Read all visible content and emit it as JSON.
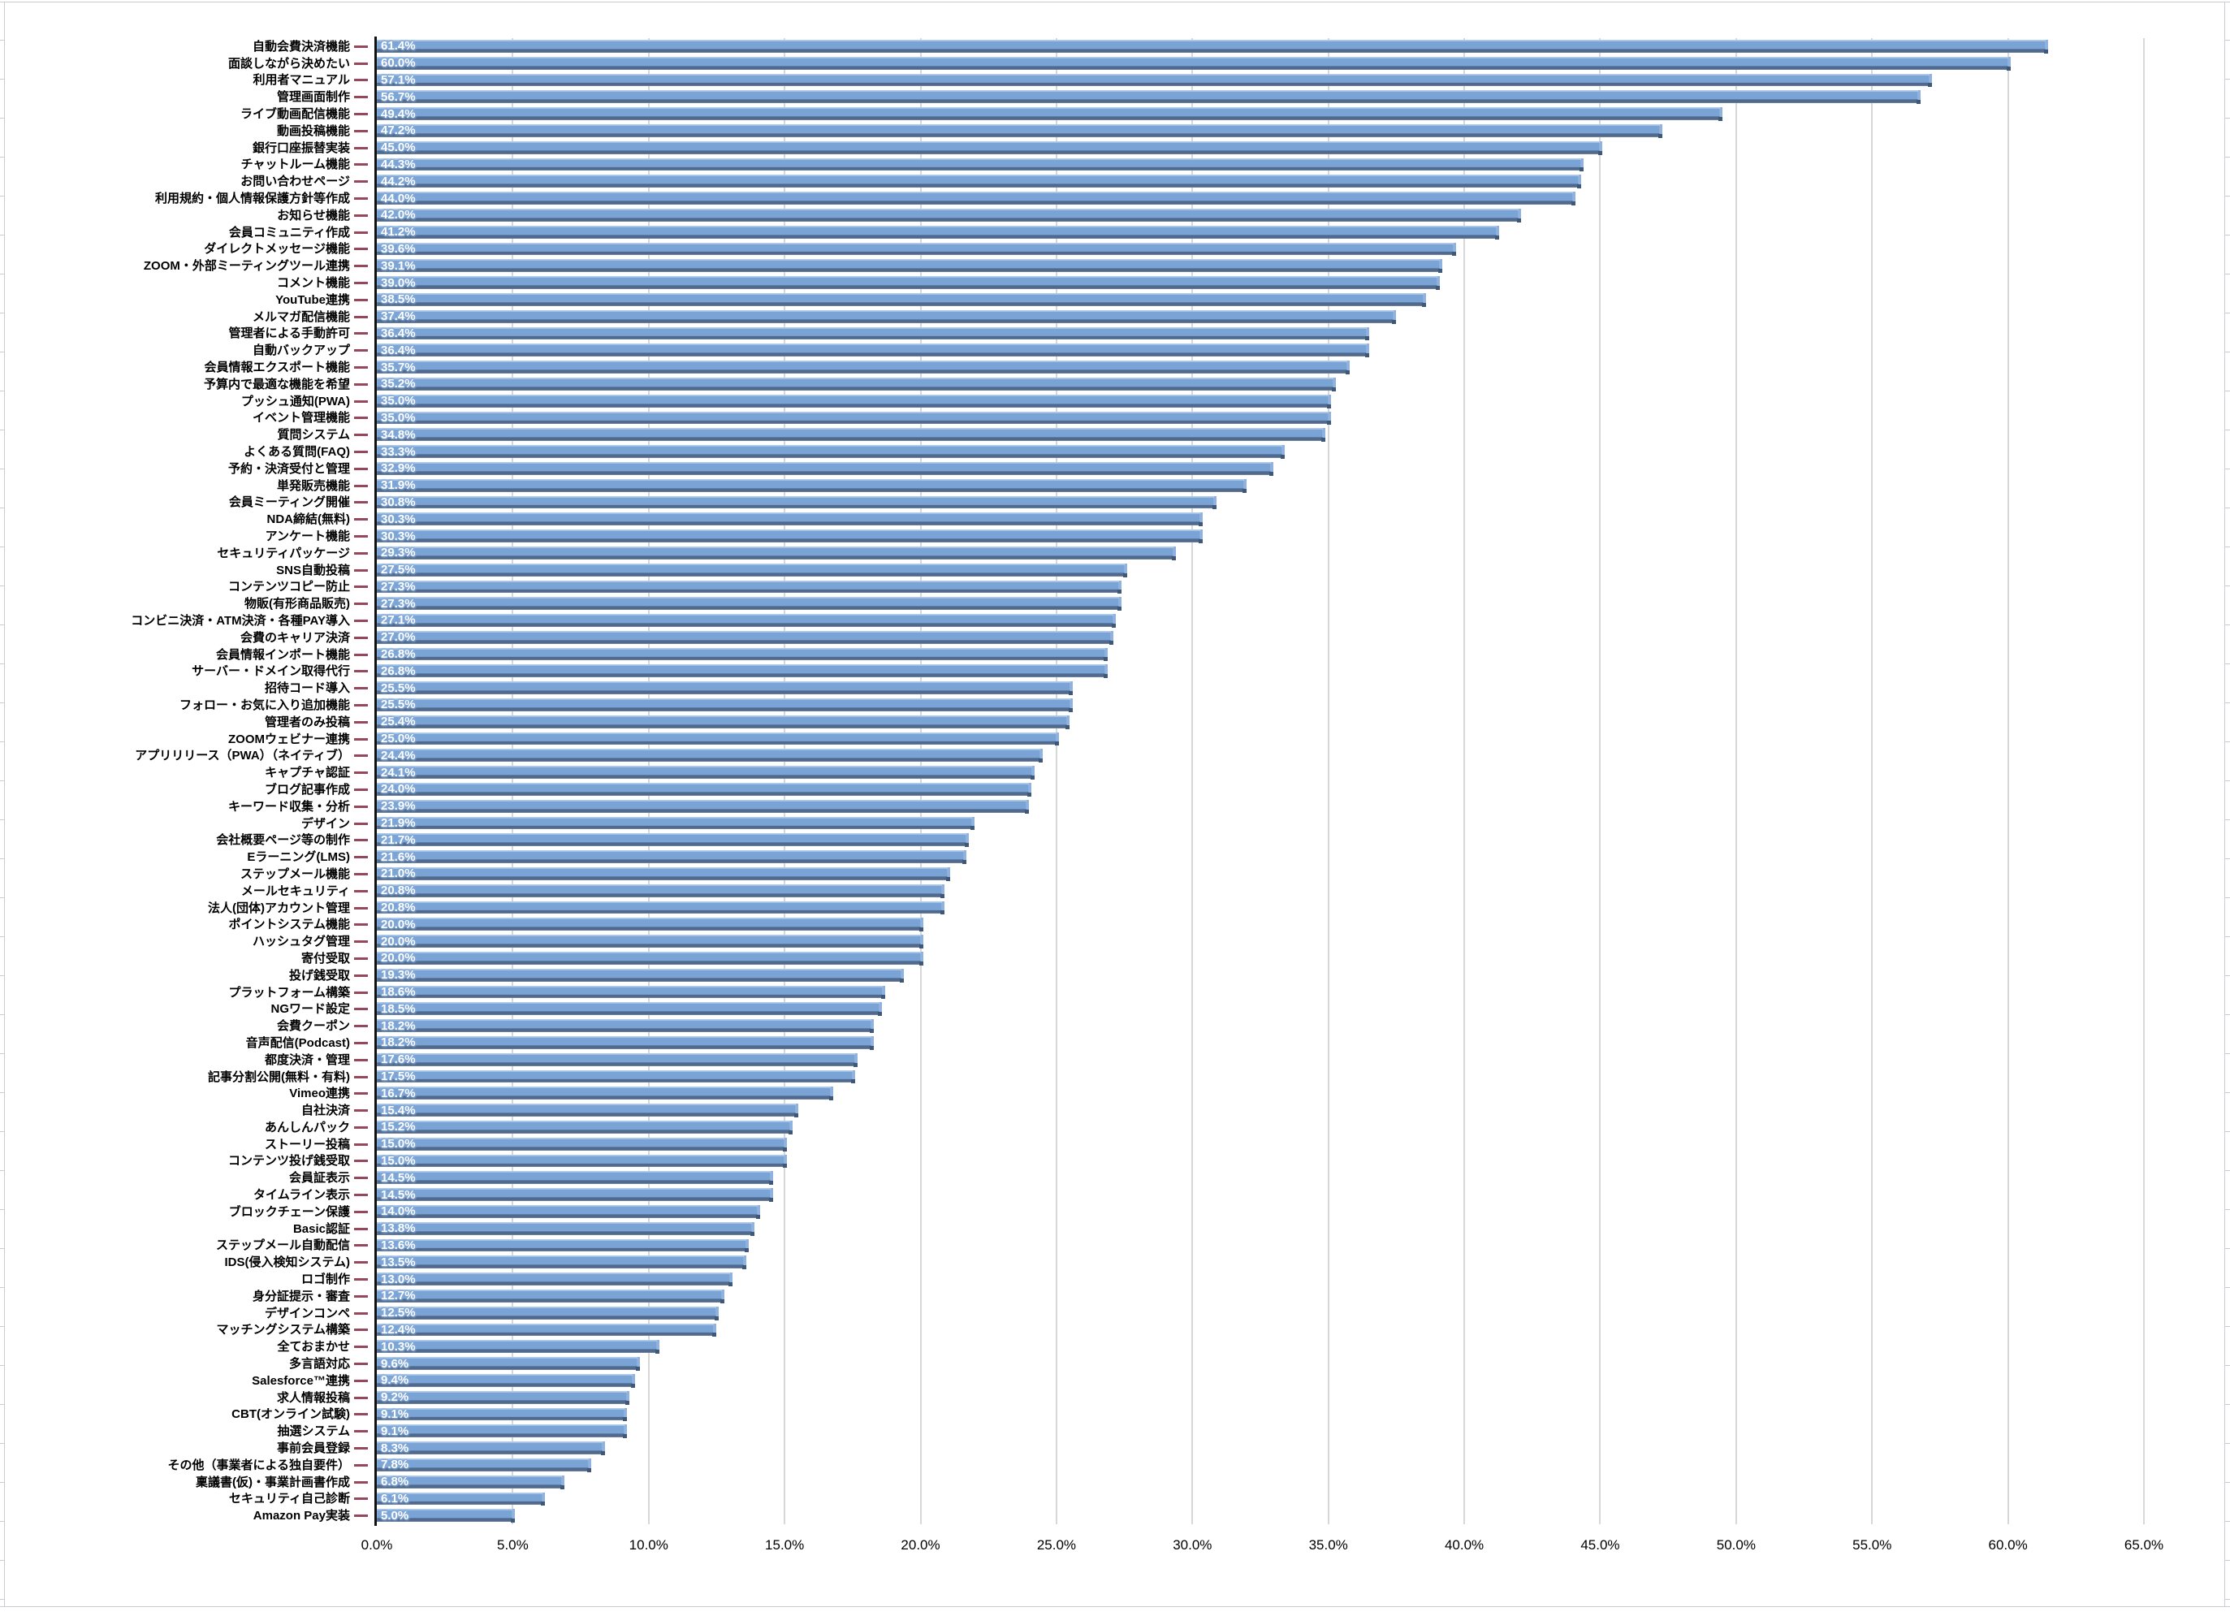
{
  "chart_data": {
    "type": "bar",
    "orientation": "horizontal",
    "title": "",
    "xlabel": "",
    "ylabel": "",
    "xlim": [
      0,
      65
    ],
    "tick_step": 5,
    "x_tick_labels": [
      "0.0%",
      "5.0%",
      "10.0%",
      "15.0%",
      "20.0%",
      "25.0%",
      "30.0%",
      "35.0%",
      "40.0%",
      "45.0%",
      "50.0%",
      "55.0%",
      "60.0%",
      "65.0%"
    ],
    "grid": true,
    "legend": false,
    "value_label_suffix": "%",
    "categories": [
      "自動会費決済機能",
      "面談しながら決めたい",
      "利用者マニュアル",
      "管理画面制作",
      "ライブ動画配信機能",
      "動画投稿機能",
      "銀行口座振替実装",
      "チャットルーム機能",
      "お問い合わせページ",
      "利用規約・個人情報保護方針等作成",
      "お知らせ機能",
      "会員コミュニティ作成",
      "ダイレクトメッセージ機能",
      "ZOOM・外部ミーティングツール連携",
      "コメント機能",
      "YouTube連携",
      "メルマガ配信機能",
      "管理者による手動許可",
      "自動バックアップ",
      "会員情報エクスポート機能",
      "予算内で最適な機能を希望",
      "プッシュ通知(PWA)",
      "イベント管理機能",
      "質問システム",
      "よくある質問(FAQ)",
      "予約・決済受付と管理",
      "単発販売機能",
      "会員ミーティング開催",
      "NDA締結(無料)",
      "アンケート機能",
      "セキュリティパッケージ",
      "SNS自動投稿",
      "コンテンツコピー防止",
      "物販(有形商品販売)",
      "コンビニ決済・ATM決済・各種PAY導入",
      "会費のキャリア決済",
      "会員情報インポート機能",
      "サーバー・ドメイン取得代行",
      "招待コード導入",
      "フォロー・お気に入り追加機能",
      "管理者のみ投稿",
      "ZOOMウェビナー連携",
      "アプリリリース（PWA）（ネイティブ）",
      "キャプチャ認証",
      "ブログ記事作成",
      "キーワード収集・分析",
      "デザイン",
      "会社概要ページ等の制作",
      "Eラーニング(LMS)",
      "ステップメール機能",
      "メールセキュリティ",
      "法人(団体)アカウント管理",
      "ポイントシステム機能",
      "ハッシュタグ管理",
      "寄付受取",
      "投げ銭受取",
      "プラットフォーム構築",
      "NGワード設定",
      "会費クーポン",
      "音声配信(Podcast)",
      "都度決済・管理",
      "記事分割公開(無料・有料)",
      "Vimeo連携",
      "自社決済",
      "あんしんパック",
      "ストーリー投稿",
      "コンテンツ投げ銭受取",
      "会員証表示",
      "タイムライン表示",
      "ブロックチェーン保護",
      "Basic認証",
      "ステップメール自動配信",
      "IDS(侵入検知システム)",
      "ロゴ制作",
      "身分証提示・審査",
      "デザインコンペ",
      "マッチングシステム構築",
      "全ておまかせ",
      "多言語対応",
      "Salesforce™連携",
      "求人情報投稿",
      "CBT(オンライン試験)",
      "抽選システム",
      "事前会員登録",
      "その他（事業者による独自要件）",
      "稟議書(仮)・事業計画書作成",
      "セキュリティ自己診断",
      "Amazon Pay実装"
    ],
    "values": [
      61.4,
      60.0,
      57.1,
      56.7,
      49.4,
      47.2,
      45.0,
      44.3,
      44.2,
      44.0,
      42.0,
      41.2,
      39.6,
      39.1,
      39.0,
      38.5,
      37.4,
      36.4,
      36.4,
      35.7,
      35.2,
      35.0,
      35.0,
      34.8,
      33.3,
      32.9,
      31.9,
      30.8,
      30.3,
      30.3,
      29.3,
      27.5,
      27.3,
      27.3,
      27.1,
      27.0,
      26.8,
      26.8,
      25.5,
      25.5,
      25.4,
      25.0,
      24.4,
      24.1,
      24.0,
      23.9,
      21.9,
      21.7,
      21.6,
      21.0,
      20.8,
      20.8,
      20.0,
      20.0,
      20.0,
      19.3,
      18.6,
      18.5,
      18.2,
      18.2,
      17.6,
      17.5,
      16.7,
      15.4,
      15.2,
      15.0,
      15.0,
      14.5,
      14.5,
      14.0,
      13.8,
      13.6,
      13.5,
      13.0,
      12.7,
      12.5,
      12.4,
      10.3,
      9.6,
      9.4,
      9.2,
      9.1,
      9.1,
      8.3,
      7.8,
      6.8,
      6.1,
      5.0
    ]
  },
  "colors": {
    "bar_fill": "#7ba4d6",
    "bar_top_highlight": "#a3c1e5",
    "bar_bottom_shadow": "#50698c",
    "category_tick": "#96475a",
    "axis_line": "#111111",
    "gridline": "#d7d7d7",
    "value_text": "#ffffff",
    "label_text": "#000000",
    "sheet_grid": "#c9cdd2"
  }
}
